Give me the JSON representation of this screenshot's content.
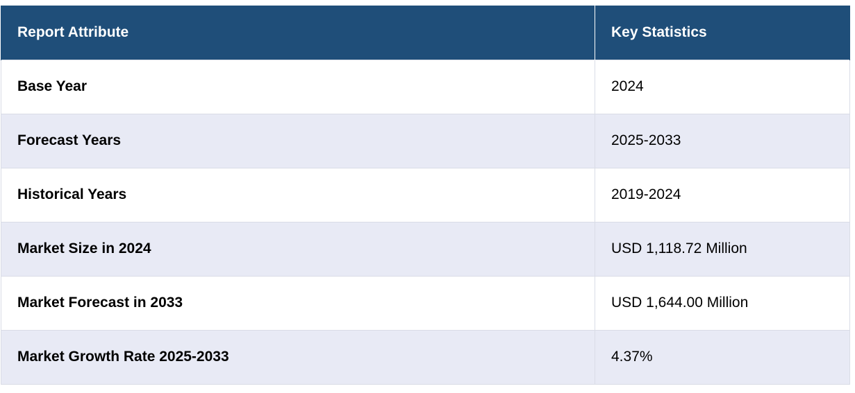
{
  "table": {
    "headers": [
      "Report Attribute",
      "Key Statistics"
    ],
    "rows": [
      [
        "Base Year",
        "2024"
      ],
      [
        "Forecast Years",
        "2025-2033"
      ],
      [
        "Historical Years",
        "2019-2024"
      ],
      [
        "Market Size in 2024",
        "USD 1,118.72 Million"
      ],
      [
        "Market Forecast in 2033",
        "USD 1,644.00 Million"
      ],
      [
        "Market Growth Rate 2025-2033",
        "4.37%"
      ]
    ],
    "colors": {
      "header_bg": "#1f4e79",
      "header_text": "#ffffff",
      "row_alt_bg": "#e8eaf5",
      "row_bg": "#ffffff"
    }
  }
}
